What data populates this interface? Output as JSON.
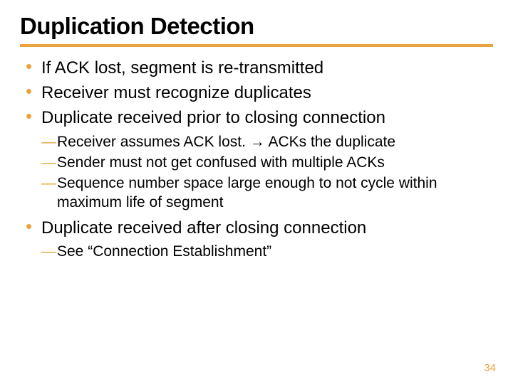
{
  "colors": {
    "accent": "#e8a33d",
    "text": "#000000",
    "background": "#ffffff"
  },
  "title": {
    "text": "Duplication Detection",
    "fontsize": 33,
    "underline_width": 4
  },
  "bullets": [
    {
      "text": "If ACK lost, segment is re-transmitted",
      "sub": []
    },
    {
      "text": "Receiver must recognize duplicates",
      "sub": []
    },
    {
      "text": "Duplicate received prior to closing connection",
      "sub": [
        "Receiver assumes ACK lost. → ACKs the duplicate",
        "Sender must not get confused with multiple ACKs",
        "Sequence number space large enough to not cycle within maximum life of segment"
      ]
    },
    {
      "text": "Duplicate received after closing connection",
      "sub": [
        " See “Connection Establishment”"
      ]
    }
  ],
  "typography": {
    "bullet_fontsize": 24,
    "sub_bullet_fontsize": 21,
    "page_number_fontsize": 15
  },
  "page_number": "34"
}
